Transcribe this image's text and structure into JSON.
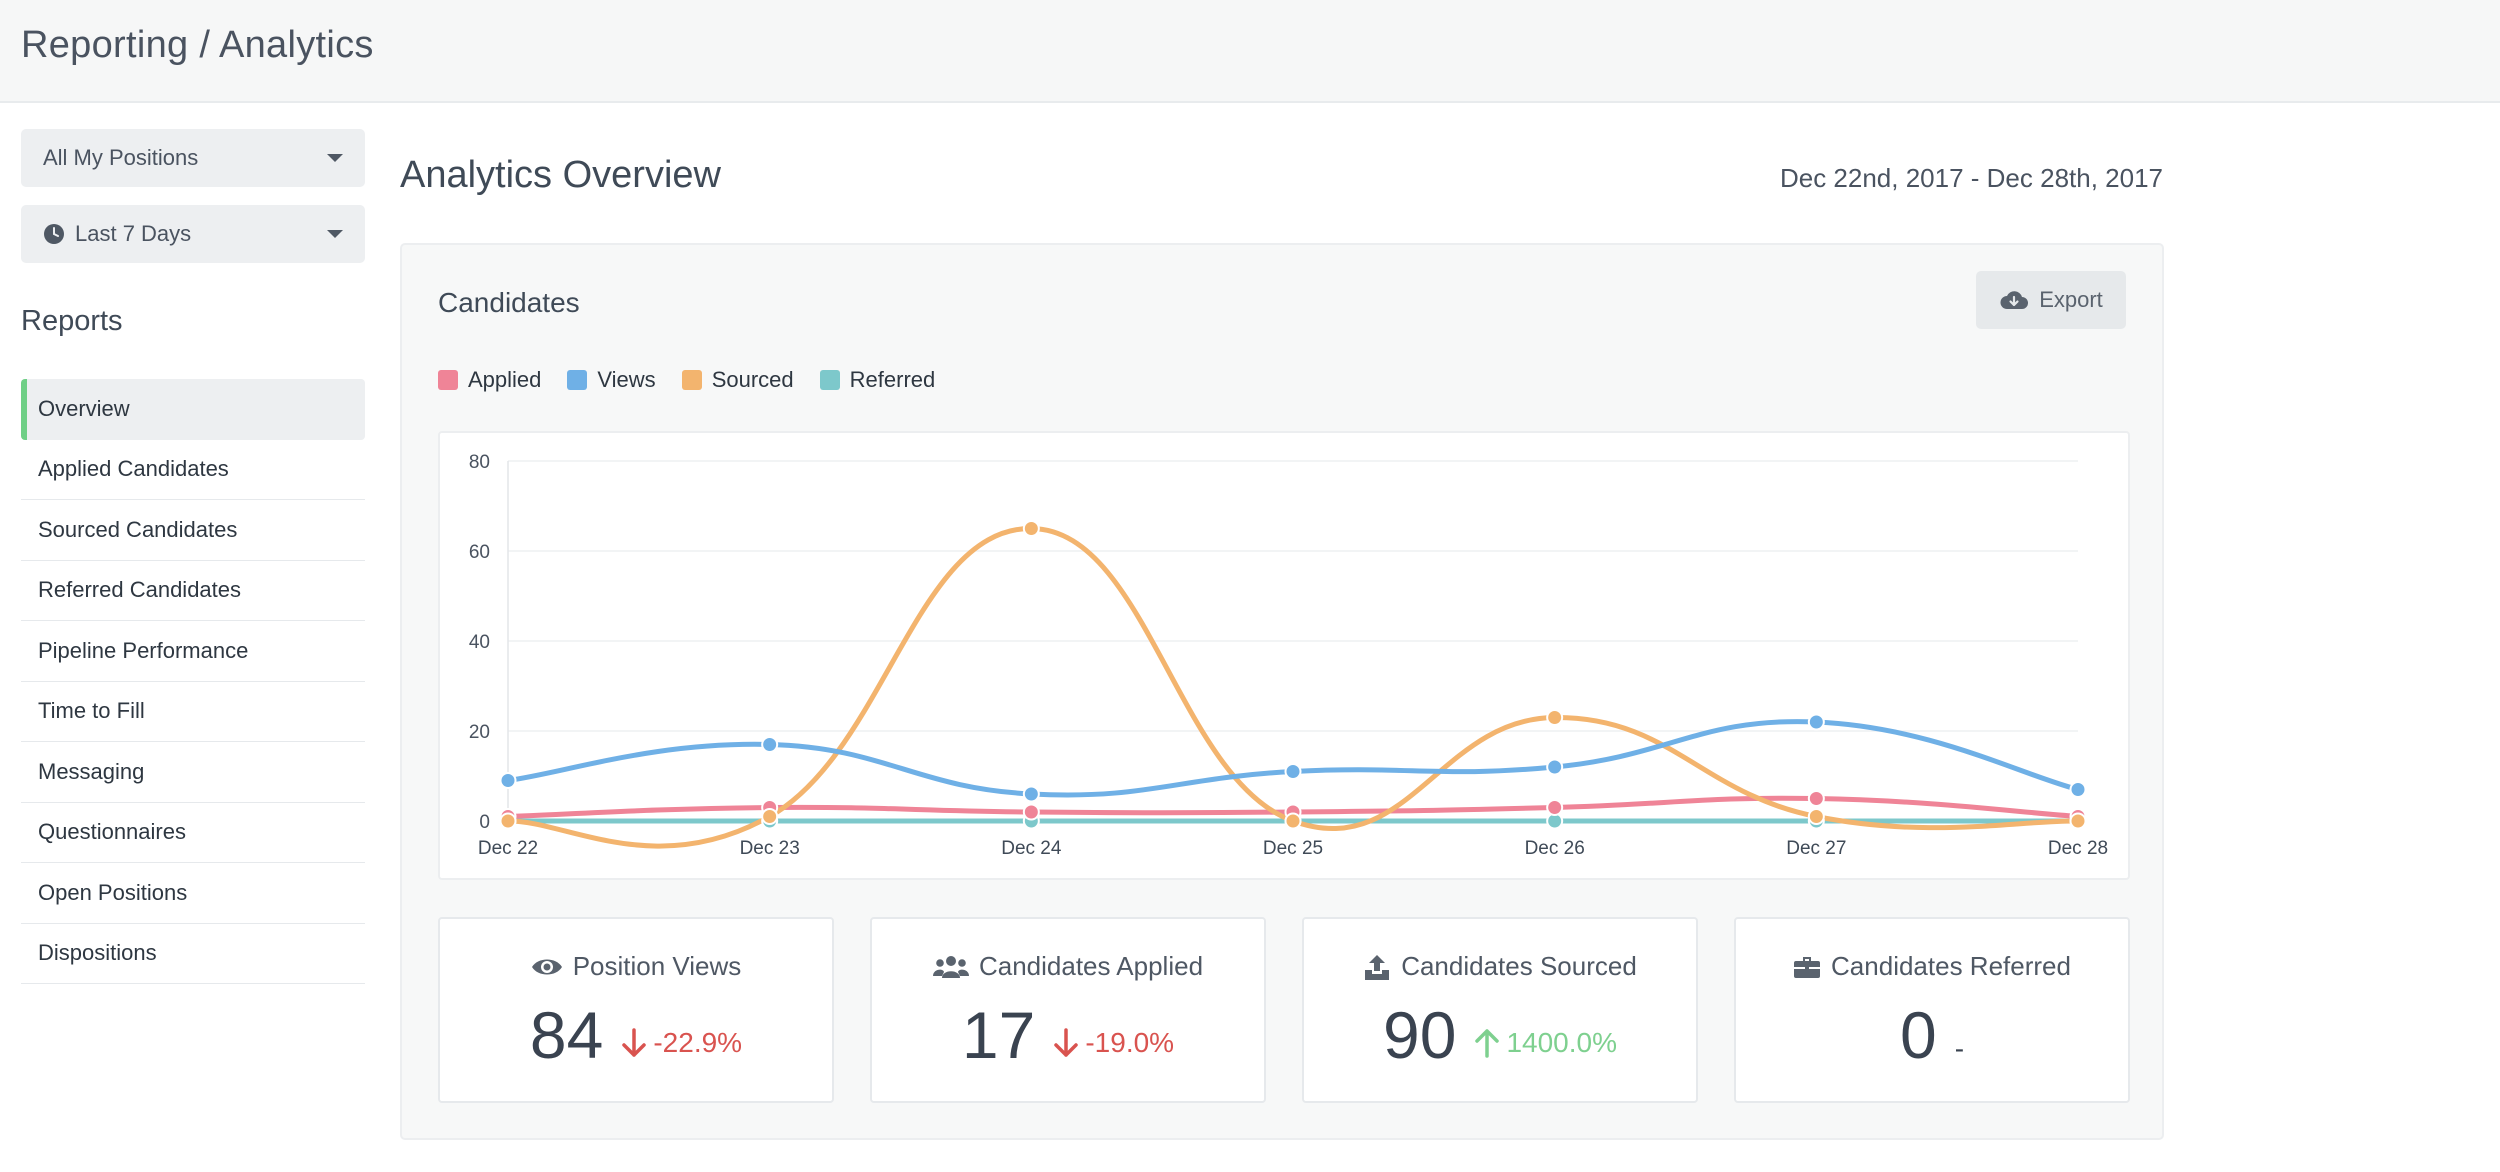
{
  "page": {
    "title": "Reporting / Analytics"
  },
  "sidebar": {
    "positions_dropdown": "All My Positions",
    "period_dropdown": "Last 7 Days",
    "reports_heading": "Reports",
    "items": [
      {
        "label": "Overview",
        "active": true
      },
      {
        "label": "Applied Candidates"
      },
      {
        "label": "Sourced Candidates"
      },
      {
        "label": "Referred Candidates"
      },
      {
        "label": "Pipeline Performance"
      },
      {
        "label": "Time to Fill"
      },
      {
        "label": "Messaging"
      },
      {
        "label": "Questionnaires"
      },
      {
        "label": "Open Positions"
      },
      {
        "label": "Dispositions"
      }
    ]
  },
  "main": {
    "title": "Analytics Overview",
    "date_range": "Dec 22nd, 2017 - Dec 28th, 2017",
    "panel_title": "Candidates",
    "export_label": "Export"
  },
  "colors": {
    "applied": "#ef8497",
    "views": "#6fb0e6",
    "sourced": "#f3b46e",
    "referred": "#7dc8cb",
    "accent_active": "#6fcf86"
  },
  "chart_data": {
    "type": "line",
    "categories": [
      "Dec 22",
      "Dec 23",
      "Dec 24",
      "Dec 25",
      "Dec 26",
      "Dec 27",
      "Dec 28"
    ],
    "ylim": [
      0,
      80
    ],
    "yticks": [
      0,
      20,
      40,
      60,
      80
    ],
    "grid": true,
    "legend_position": "top-left",
    "series": [
      {
        "name": "Applied",
        "color_key": "applied",
        "values": [
          1,
          3,
          2,
          2,
          3,
          5,
          1
        ]
      },
      {
        "name": "Views",
        "color_key": "views",
        "values": [
          9,
          17,
          6,
          11,
          12,
          22,
          7
        ]
      },
      {
        "name": "Sourced",
        "color_key": "sourced",
        "values": [
          0,
          1,
          65,
          0,
          23,
          1,
          0
        ]
      },
      {
        "name": "Referred",
        "color_key": "referred",
        "values": [
          0,
          0,
          0,
          0,
          0,
          0,
          0
        ]
      }
    ]
  },
  "stats": [
    {
      "label": "Position Views",
      "icon": "eye-icon",
      "value": "84",
      "change": "-22.9%",
      "direction": "down"
    },
    {
      "label": "Candidates Applied",
      "icon": "users-icon",
      "value": "17",
      "change": "-19.0%",
      "direction": "down"
    },
    {
      "label": "Candidates Sourced",
      "icon": "upload-icon",
      "value": "90",
      "change": "1400.0%",
      "direction": "up"
    },
    {
      "label": "Candidates Referred",
      "icon": "briefcase-icon",
      "value": "0",
      "change": "-",
      "direction": "flat"
    }
  ]
}
